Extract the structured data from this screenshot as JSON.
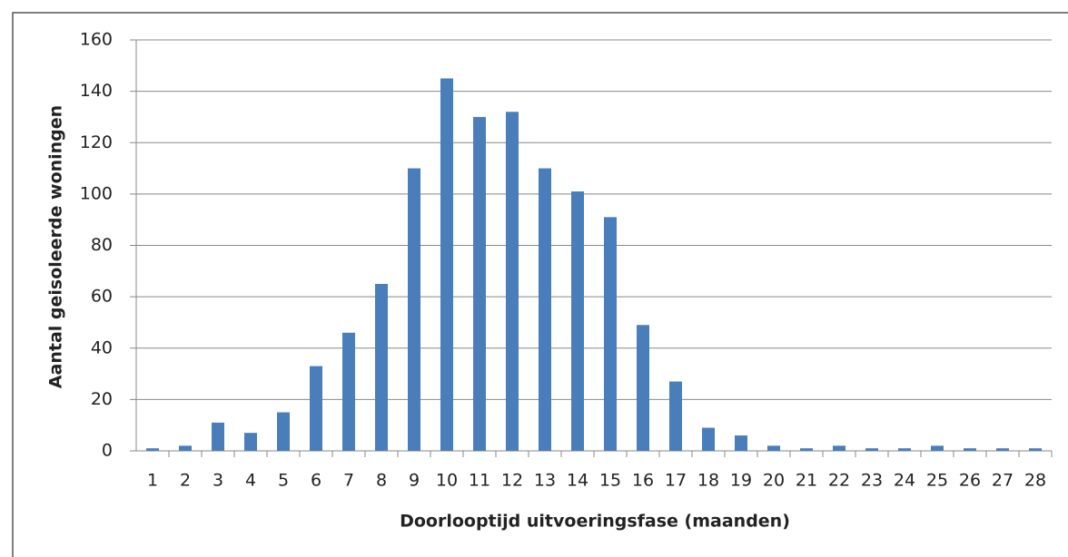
{
  "chart_data": {
    "type": "bar",
    "x_label": "Doorlooptijd uitvoeringsfase (maanden)",
    "y_label": "Aantal geisoleerde woningen",
    "categories": [
      "1",
      "2",
      "3",
      "4",
      "5",
      "6",
      "7",
      "8",
      "9",
      "10",
      "11",
      "12",
      "13",
      "14",
      "15",
      "16",
      "17",
      "18",
      "19",
      "20",
      "21",
      "22",
      "23",
      "24",
      "25",
      "26",
      "27",
      "28"
    ],
    "values": [
      1,
      2,
      11,
      7,
      15,
      33,
      46,
      65,
      110,
      145,
      130,
      132,
      110,
      101,
      91,
      49,
      27,
      9,
      6,
      2,
      1,
      2,
      1,
      1,
      2,
      1,
      1,
      1
    ],
    "color": "#4a7ebb",
    "ylim": [
      0,
      160
    ],
    "yticks": [
      0,
      20,
      40,
      60,
      80,
      100,
      120,
      140,
      160
    ],
    "grid": true
  }
}
